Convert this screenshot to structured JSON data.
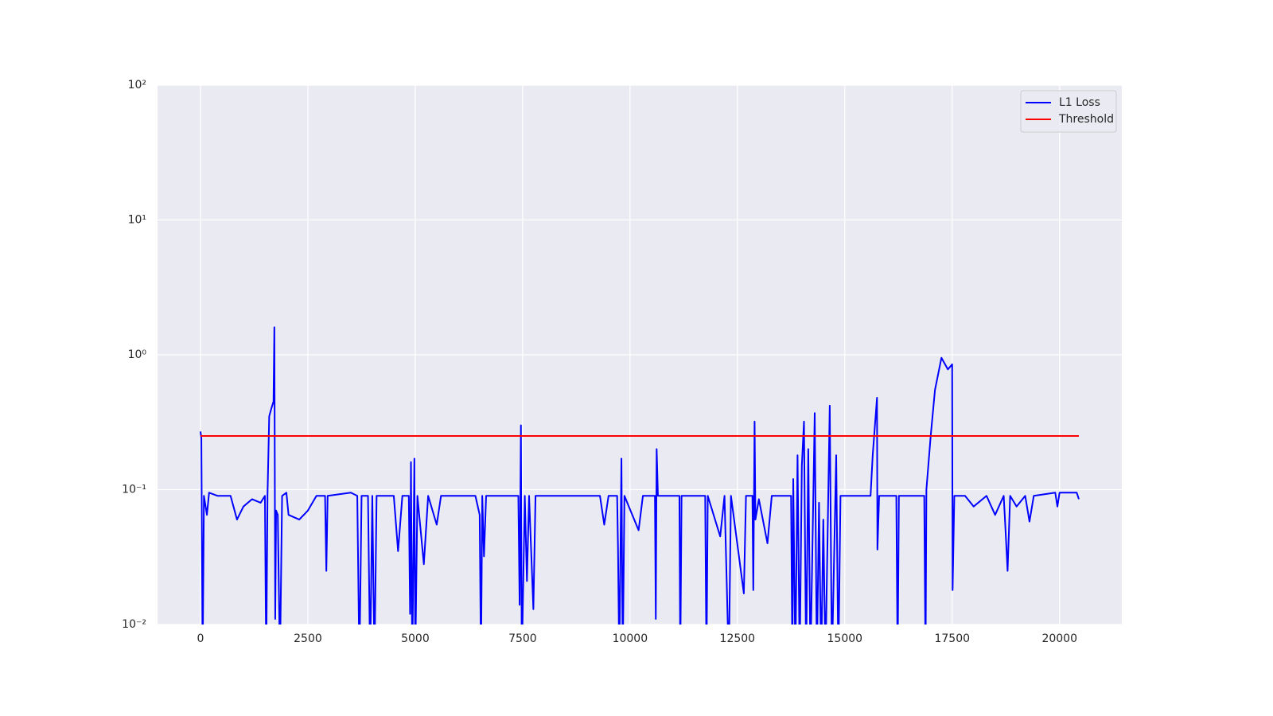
{
  "chart_data": {
    "type": "line",
    "log_y": true,
    "grid": true,
    "legend": "upper right",
    "background": "#eaeaf2",
    "xlim": [
      -1000,
      21450
    ],
    "xticks": [
      0,
      2500,
      5000,
      7500,
      10000,
      12500,
      15000,
      17500,
      20000
    ],
    "ylim": [
      0.01,
      100
    ],
    "yticks": [
      {
        "value": 0.01,
        "label": "10⁻²"
      },
      {
        "value": 0.1,
        "label": "10⁻¹"
      },
      {
        "value": 1,
        "label": "10⁰"
      },
      {
        "value": 10,
        "label": "10¹"
      },
      {
        "value": 100,
        "label": "10²"
      }
    ],
    "series": [
      {
        "name": "L1 Loss",
        "color": "#0000ff",
        "x": [
          0,
          20,
          50,
          80,
          150,
          200,
          400,
          700,
          850,
          1000,
          1200,
          1400,
          1500,
          1530,
          1560,
          1600,
          1650,
          1700,
          1720,
          1740,
          1760,
          1800,
          1850,
          1900,
          2000,
          2050,
          2300,
          2500,
          2700,
          2900,
          2930,
          2960,
          3500,
          3650,
          3700,
          3750,
          3900,
          3950,
          4000,
          4050,
          4100,
          4500,
          4600,
          4700,
          4850,
          4880,
          4900,
          4930,
          4980,
          5000,
          5050,
          5200,
          5300,
          5500,
          5600,
          6400,
          6500,
          6530,
          6560,
          6600,
          6650,
          7400,
          7430,
          7460,
          7480,
          7550,
          7600,
          7650,
          7750,
          7800,
          9300,
          9400,
          9500,
          9700,
          9720,
          9750,
          9800,
          9830,
          9870,
          10200,
          10300,
          10580,
          10600,
          10620,
          10650,
          11150,
          11170,
          11200,
          11750,
          11780,
          11810,
          12100,
          12200,
          12300,
          12350,
          12650,
          12700,
          12850,
          12870,
          12900,
          12920,
          13000,
          13200,
          13300,
          13750,
          13780,
          13800,
          13850,
          13900,
          13950,
          14000,
          14050,
          14100,
          14150,
          14200,
          14300,
          14350,
          14400,
          14450,
          14500,
          14550,
          14650,
          14700,
          14800,
          14850,
          14900,
          15600,
          15650,
          15750,
          15760,
          15800,
          16200,
          16230,
          16260,
          16850,
          16880,
          16900,
          17000,
          17100,
          17250,
          17400,
          17500,
          17510,
          17550,
          17800,
          18000,
          18300,
          18500,
          18700,
          18750,
          18790,
          18850,
          19000,
          19200,
          19300,
          19400,
          19900,
          19950,
          20000,
          20400,
          20450
        ],
        "values": [
          0.27,
          0.24,
          0.005,
          0.09,
          0.065,
          0.095,
          0.09,
          0.09,
          0.06,
          0.075,
          0.085,
          0.08,
          0.09,
          0.005,
          0.09,
          0.35,
          0.4,
          0.45,
          1.6,
          0.011,
          0.07,
          0.065,
          0.005,
          0.09,
          0.095,
          0.065,
          0.06,
          0.07,
          0.09,
          0.09,
          0.025,
          0.09,
          0.095,
          0.09,
          0.005,
          0.09,
          0.09,
          0.005,
          0.09,
          0.005,
          0.09,
          0.09,
          0.035,
          0.09,
          0.09,
          0.012,
          0.16,
          0.005,
          0.17,
          0.005,
          0.09,
          0.028,
          0.09,
          0.055,
          0.09,
          0.09,
          0.065,
          0.005,
          0.09,
          0.032,
          0.09,
          0.09,
          0.014,
          0.3,
          0.005,
          0.09,
          0.021,
          0.09,
          0.013,
          0.09,
          0.09,
          0.055,
          0.09,
          0.09,
          0.037,
          0.005,
          0.17,
          0.005,
          0.09,
          0.05,
          0.09,
          0.09,
          0.011,
          0.2,
          0.09,
          0.09,
          0.005,
          0.09,
          0.09,
          0.005,
          0.09,
          0.045,
          0.09,
          0.005,
          0.09,
          0.017,
          0.09,
          0.09,
          0.018,
          0.32,
          0.06,
          0.085,
          0.04,
          0.09,
          0.09,
          0.005,
          0.12,
          0.005,
          0.18,
          0.005,
          0.15,
          0.32,
          0.005,
          0.2,
          0.005,
          0.37,
          0.005,
          0.08,
          0.005,
          0.06,
          0.005,
          0.42,
          0.005,
          0.18,
          0.005,
          0.09,
          0.09,
          0.18,
          0.48,
          0.036,
          0.09,
          0.09,
          0.005,
          0.09,
          0.09,
          0.005,
          0.1,
          0.25,
          0.55,
          0.95,
          0.78,
          0.85,
          0.018,
          0.09,
          0.09,
          0.075,
          0.09,
          0.065,
          0.09,
          0.045,
          0.025,
          0.09,
          0.075,
          0.09,
          0.058,
          0.09,
          0.095,
          0.075,
          0.095,
          0.095,
          0.085
        ]
      },
      {
        "name": "Threshold",
        "color": "#ff0000",
        "x": [
          0,
          20450
        ],
        "values": [
          0.25,
          0.25
        ]
      }
    ]
  }
}
